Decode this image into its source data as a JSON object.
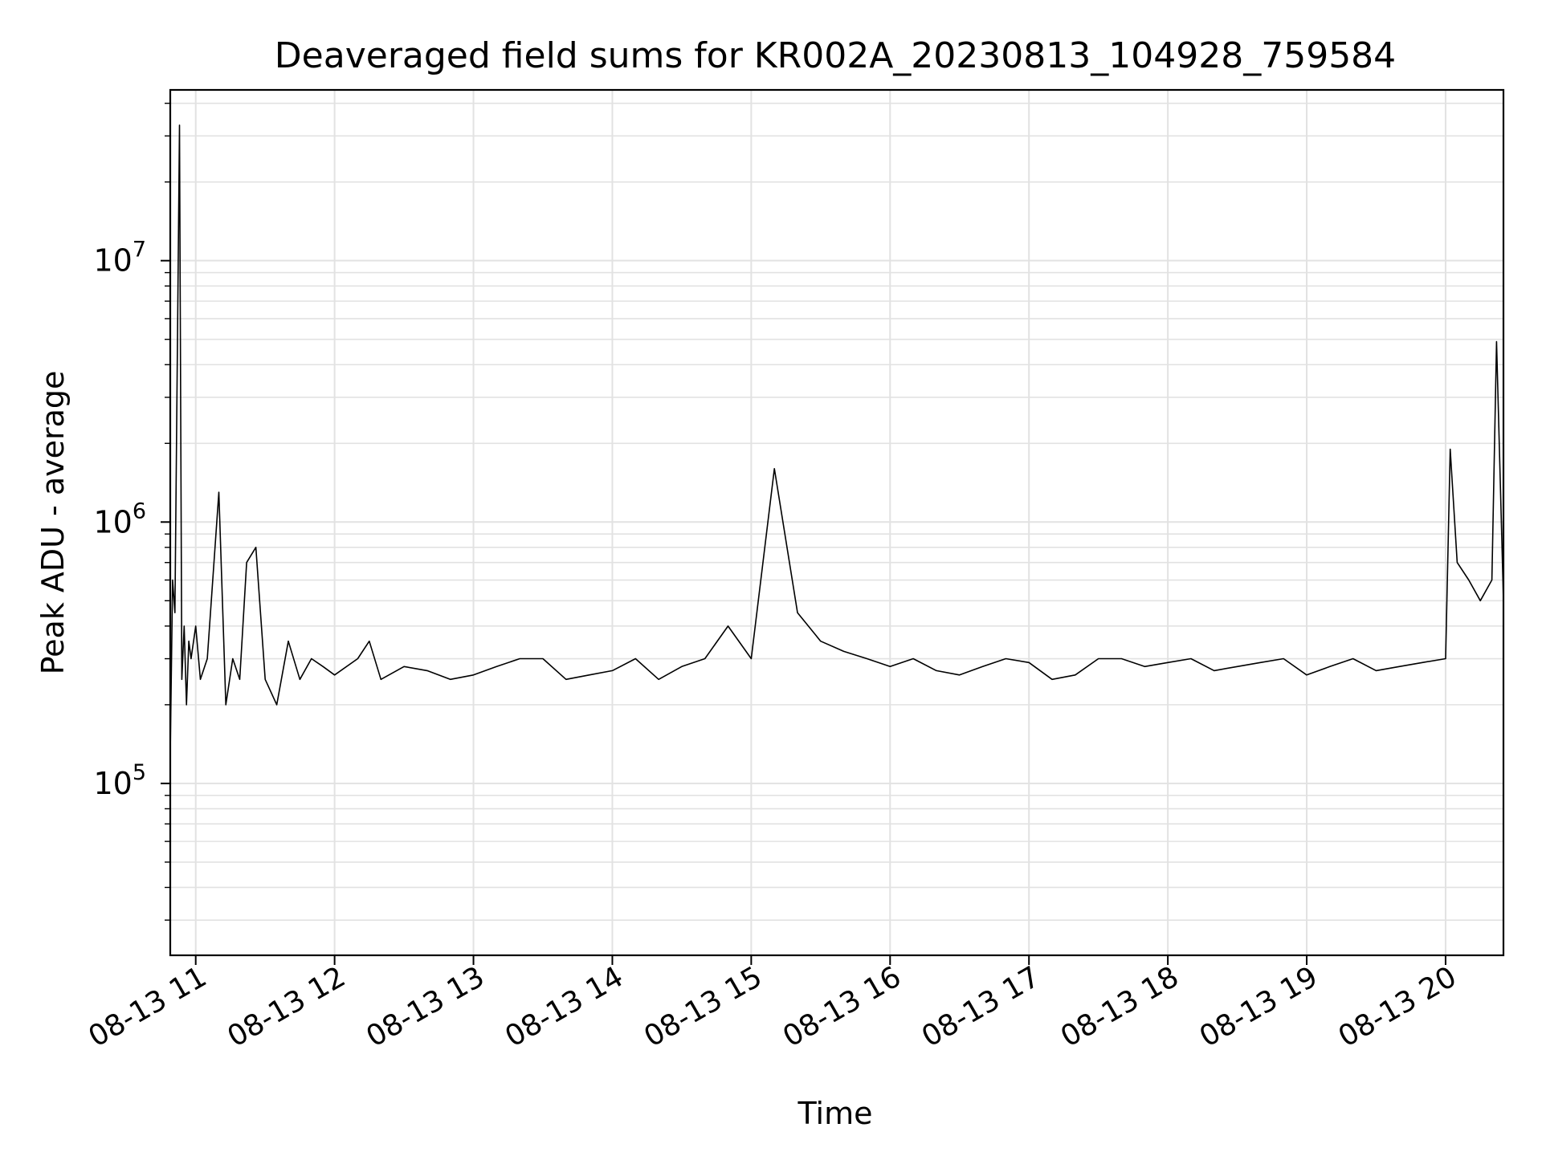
{
  "chart_data": {
    "type": "line",
    "title": "Deaveraged field sums for KR002A_20230813_104928_759584",
    "xlabel": "Time",
    "ylabel": "Peak ADU - average",
    "yscale": "log",
    "ylim": [
      22000,
      45000000
    ],
    "xlim": [
      "2023-08-13 10:49",
      "2023-08-13 20:25"
    ],
    "grid": true,
    "x_tick_labels": [
      "08-13 11",
      "08-13 12",
      "08-13 13",
      "08-13 14",
      "08-13 15",
      "08-13 16",
      "08-13 17",
      "08-13 18",
      "08-13 19",
      "08-13 20"
    ],
    "x_tick_times": [
      "2023-08-13 11:00",
      "2023-08-13 12:00",
      "2023-08-13 13:00",
      "2023-08-13 14:00",
      "2023-08-13 15:00",
      "2023-08-13 16:00",
      "2023-08-13 17:00",
      "2023-08-13 18:00",
      "2023-08-13 19:00",
      "2023-08-13 20:00"
    ],
    "y_ticks": [
      {
        "value": 100000,
        "base": "10",
        "exp": "5"
      },
      {
        "value": 1000000,
        "base": "10",
        "exp": "6"
      },
      {
        "value": 10000000,
        "base": "10",
        "exp": "7"
      }
    ],
    "line_color": "#000000",
    "series": [
      {
        "x": [
          "2023-08-13 10:49",
          "2023-08-13 10:50",
          "2023-08-13 10:51",
          "2023-08-13 10:53",
          "2023-08-13 10:54",
          "2023-08-13 10:55",
          "2023-08-13 10:56",
          "2023-08-13 10:57",
          "2023-08-13 10:58",
          "2023-08-13 11:00",
          "2023-08-13 11:02",
          "2023-08-13 11:05",
          "2023-08-13 11:10",
          "2023-08-13 11:13",
          "2023-08-13 11:16",
          "2023-08-13 11:19",
          "2023-08-13 11:22",
          "2023-08-13 11:26",
          "2023-08-13 11:30",
          "2023-08-13 11:35",
          "2023-08-13 11:40",
          "2023-08-13 11:45",
          "2023-08-13 11:50",
          "2023-08-13 11:55",
          "2023-08-13 12:00",
          "2023-08-13 12:10",
          "2023-08-13 12:15",
          "2023-08-13 12:20",
          "2023-08-13 12:30",
          "2023-08-13 12:40",
          "2023-08-13 12:50",
          "2023-08-13 13:00",
          "2023-08-13 13:10",
          "2023-08-13 13:20",
          "2023-08-13 13:30",
          "2023-08-13 13:40",
          "2023-08-13 13:50",
          "2023-08-13 14:00",
          "2023-08-13 14:10",
          "2023-08-13 14:20",
          "2023-08-13 14:30",
          "2023-08-13 14:40",
          "2023-08-13 14:50",
          "2023-08-13 15:00",
          "2023-08-13 15:10",
          "2023-08-13 15:20",
          "2023-08-13 15:30",
          "2023-08-13 15:40",
          "2023-08-13 15:50",
          "2023-08-13 16:00",
          "2023-08-13 16:10",
          "2023-08-13 16:20",
          "2023-08-13 16:30",
          "2023-08-13 16:40",
          "2023-08-13 16:50",
          "2023-08-13 17:00",
          "2023-08-13 17:10",
          "2023-08-13 17:20",
          "2023-08-13 17:30",
          "2023-08-13 17:40",
          "2023-08-13 17:50",
          "2023-08-13 18:00",
          "2023-08-13 18:10",
          "2023-08-13 18:20",
          "2023-08-13 18:30",
          "2023-08-13 18:40",
          "2023-08-13 18:50",
          "2023-08-13 19:00",
          "2023-08-13 19:10",
          "2023-08-13 19:20",
          "2023-08-13 19:30",
          "2023-08-13 19:40",
          "2023-08-13 19:50",
          "2023-08-13 20:00",
          "2023-08-13 20:02",
          "2023-08-13 20:05",
          "2023-08-13 20:10",
          "2023-08-13 20:15",
          "2023-08-13 20:20",
          "2023-08-13 20:22",
          "2023-08-13 20:25"
        ],
        "y": [
          130000,
          600000,
          450000,
          33000000,
          250000,
          400000,
          200000,
          350000,
          300000,
          400000,
          250000,
          300000,
          1300000,
          200000,
          300000,
          250000,
          700000,
          800000,
          250000,
          200000,
          350000,
          250000,
          300000,
          280000,
          260000,
          300000,
          350000,
          250000,
          280000,
          270000,
          250000,
          260000,
          280000,
          300000,
          300000,
          250000,
          260000,
          270000,
          300000,
          250000,
          280000,
          300000,
          400000,
          300000,
          1600000,
          450000,
          350000,
          320000,
          300000,
          280000,
          300000,
          270000,
          260000,
          280000,
          300000,
          290000,
          250000,
          260000,
          300000,
          300000,
          280000,
          290000,
          300000,
          270000,
          280000,
          290000,
          300000,
          260000,
          280000,
          300000,
          270000,
          280000,
          290000,
          300000,
          1900000,
          700000,
          600000,
          500000,
          600000,
          4900000,
          500000
        ]
      }
    ]
  }
}
